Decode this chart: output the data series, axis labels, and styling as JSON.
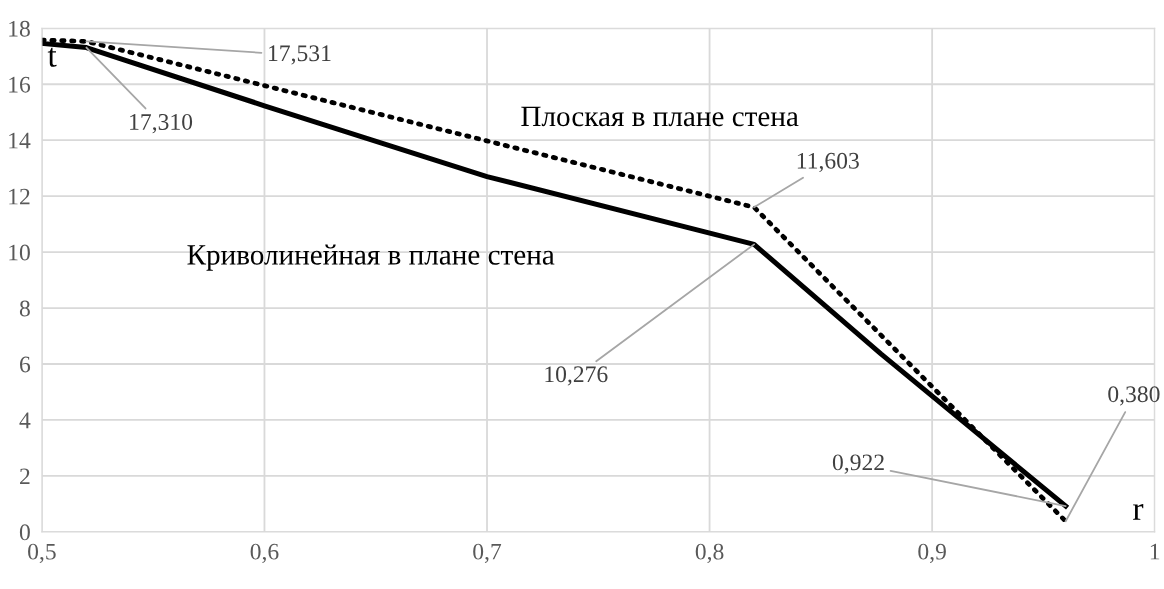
{
  "chart_data": {
    "type": "line",
    "xlabel": "r",
    "ylabel": "t",
    "xlim": [
      0.5,
      1
    ],
    "xticks": [
      {
        "value": 0.5,
        "label": "0,5"
      },
      {
        "value": 0.6,
        "label": "0,6"
      },
      {
        "value": 0.7,
        "label": "0,7"
      },
      {
        "value": 0.8,
        "label": "0,8"
      },
      {
        "value": 0.9,
        "label": "0,9"
      },
      {
        "value": 1,
        "label": "1"
      }
    ],
    "ylim": [
      0,
      18
    ],
    "yticks": [
      0,
      2,
      4,
      6,
      8,
      10,
      12,
      14,
      16,
      18
    ],
    "grid": true,
    "legend": false,
    "marker": "none",
    "series": [
      {
        "name": "Криволинейная в плане стена",
        "color": "#000000",
        "line_style": "solid",
        "x": [
          0.5,
          0.52,
          0.6,
          0.7,
          0.82,
          0.877,
          0.96
        ],
        "values": [
          17.46,
          17.31,
          15.23,
          12.7,
          10.276,
          6.36,
          0.922
        ],
        "value_labels": [
          null,
          "17,310",
          null,
          null,
          "10,276",
          null,
          "0,922"
        ]
      },
      {
        "name": "Плоская в плане стена",
        "color": "#000000",
        "line_style": "dotted",
        "x": [
          0.5,
          0.52,
          0.82,
          0.96
        ],
        "values": [
          17.58,
          17.531,
          11.603,
          0.38
        ],
        "value_labels": [
          null,
          "17,531",
          "11,603",
          "0,380"
        ]
      }
    ]
  }
}
